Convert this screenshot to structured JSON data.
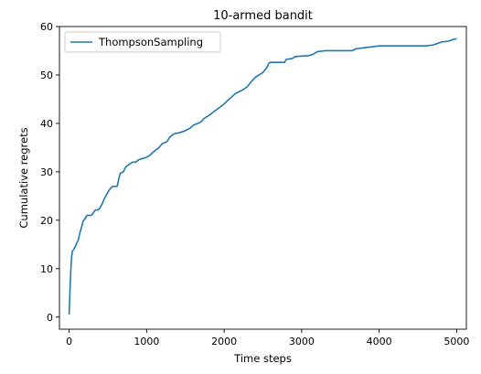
{
  "chart_data": {
    "type": "line",
    "title": "10-armed bandit",
    "xlabel": "Time steps",
    "ylabel": "Cumulative regrets",
    "xlim": [
      -125,
      5125
    ],
    "ylim": [
      -2.5,
      60
    ],
    "xticks": [
      0,
      1000,
      2000,
      3000,
      4000,
      5000
    ],
    "yticks": [
      0,
      10,
      20,
      30,
      40,
      50,
      60
    ],
    "grid": false,
    "legend": "upper-left",
    "series": [
      {
        "name": "ThompsonSampling",
        "color": "#1f77b4",
        "points": [
          [
            0,
            0.5
          ],
          [
            10,
            5
          ],
          [
            20,
            9
          ],
          [
            30,
            12
          ],
          [
            40,
            13.5
          ],
          [
            60,
            14
          ],
          [
            80,
            14.6
          ],
          [
            100,
            15.3
          ],
          [
            120,
            16
          ],
          [
            140,
            17.5
          ],
          [
            160,
            18.5
          ],
          [
            180,
            19.8
          ],
          [
            200,
            20.2
          ],
          [
            230,
            21
          ],
          [
            280,
            21
          ],
          [
            300,
            21.2
          ],
          [
            330,
            22
          ],
          [
            380,
            22.2
          ],
          [
            400,
            22.6
          ],
          [
            430,
            23.5
          ],
          [
            450,
            24.3
          ],
          [
            480,
            25.2
          ],
          [
            500,
            25.8
          ],
          [
            530,
            26.5
          ],
          [
            560,
            27
          ],
          [
            620,
            27
          ],
          [
            640,
            28.5
          ],
          [
            660,
            29.7
          ],
          [
            700,
            30
          ],
          [
            730,
            31
          ],
          [
            780,
            31.6
          ],
          [
            820,
            32
          ],
          [
            860,
            32
          ],
          [
            900,
            32.5
          ],
          [
            960,
            32.8
          ],
          [
            1000,
            33
          ],
          [
            1040,
            33.4
          ],
          [
            1080,
            34
          ],
          [
            1120,
            34.5
          ],
          [
            1160,
            35
          ],
          [
            1200,
            35.8
          ],
          [
            1260,
            36.2
          ],
          [
            1300,
            37.2
          ],
          [
            1350,
            37.8
          ],
          [
            1400,
            38
          ],
          [
            1450,
            38.2
          ],
          [
            1500,
            38.5
          ],
          [
            1560,
            39
          ],
          [
            1600,
            39.6
          ],
          [
            1660,
            40
          ],
          [
            1700,
            40.3
          ],
          [
            1740,
            41
          ],
          [
            1800,
            41.6
          ],
          [
            1850,
            42.2
          ],
          [
            1900,
            42.8
          ],
          [
            1950,
            43.4
          ],
          [
            2000,
            44
          ],
          [
            2050,
            44.8
          ],
          [
            2100,
            45.5
          ],
          [
            2150,
            46.2
          ],
          [
            2200,
            46.6
          ],
          [
            2250,
            47
          ],
          [
            2300,
            47.6
          ],
          [
            2350,
            48.6
          ],
          [
            2400,
            49.5
          ],
          [
            2450,
            50
          ],
          [
            2500,
            50.5
          ],
          [
            2550,
            51.5
          ],
          [
            2580,
            52.5
          ],
          [
            2600,
            52.6
          ],
          [
            2780,
            52.6
          ],
          [
            2800,
            53.2
          ],
          [
            2880,
            53.4
          ],
          [
            2920,
            53.8
          ],
          [
            3100,
            54
          ],
          [
            3150,
            54.3
          ],
          [
            3200,
            54.8
          ],
          [
            3300,
            55
          ],
          [
            3650,
            55
          ],
          [
            3700,
            55.4
          ],
          [
            3800,
            55.6
          ],
          [
            4000,
            56
          ],
          [
            4600,
            56
          ],
          [
            4700,
            56.2
          ],
          [
            4800,
            56.8
          ],
          [
            4900,
            57
          ],
          [
            4950,
            57.3
          ],
          [
            5000,
            57.5
          ]
        ]
      }
    ]
  }
}
